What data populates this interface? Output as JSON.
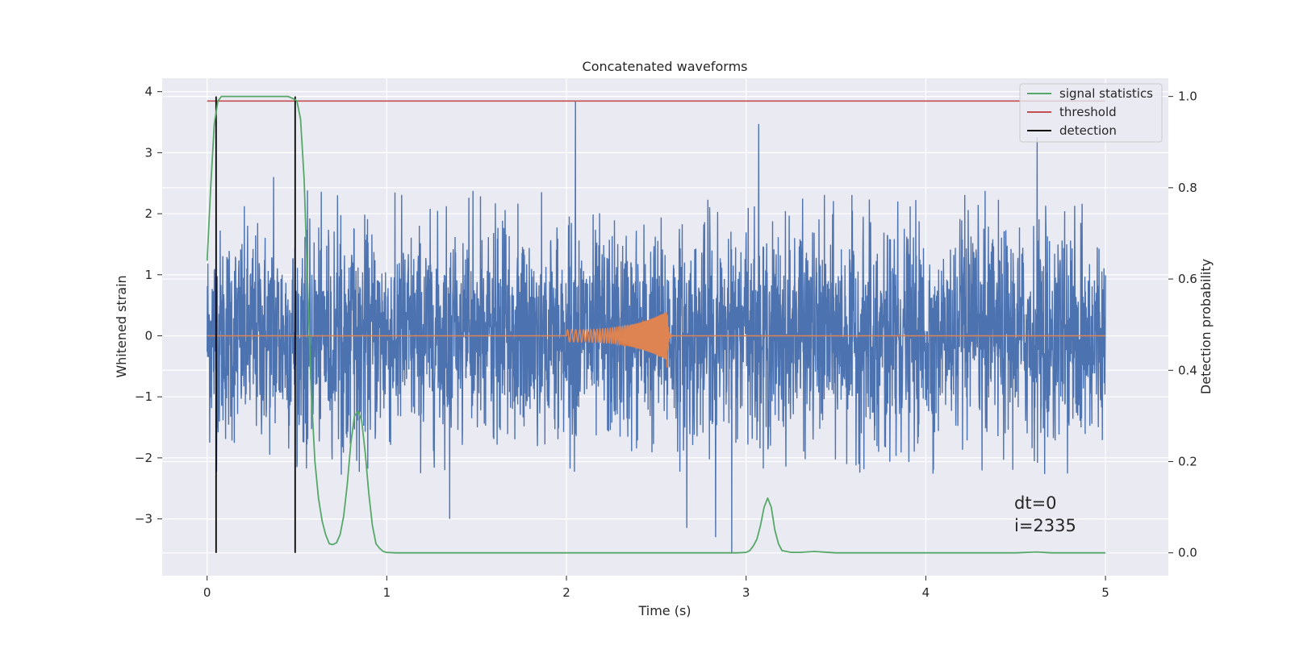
{
  "chart_data": {
    "type": "line",
    "title": "Concatenated waveforms",
    "xlabel": "Time (s)",
    "ylabel": "Whitened strain",
    "y2label": "Detection probability",
    "xlim": [
      -0.25,
      5.35
    ],
    "ylim": [
      -3.93,
      4.22
    ],
    "y2lim": [
      -0.05,
      1.04
    ],
    "xticks": [
      0,
      1,
      2,
      3,
      4,
      5
    ],
    "yticks": [
      -3,
      -2,
      -1,
      0,
      1,
      2,
      3,
      4
    ],
    "y2ticks": [
      0.0,
      0.2,
      0.4,
      0.6,
      0.8,
      1.0
    ],
    "grid": true,
    "legend_position": "top-right",
    "background": "#eaeaf2",
    "series": [
      {
        "name": "signal statistics",
        "axis": "right",
        "color": "#55a868",
        "x": [
          0.0,
          0.02,
          0.04,
          0.06,
          0.08,
          0.1,
          0.15,
          0.2,
          0.3,
          0.4,
          0.45,
          0.48,
          0.5,
          0.52,
          0.54,
          0.56,
          0.58,
          0.6,
          0.62,
          0.64,
          0.66,
          0.68,
          0.7,
          0.72,
          0.74,
          0.76,
          0.78,
          0.8,
          0.82,
          0.84,
          0.86,
          0.88,
          0.9,
          0.92,
          0.94,
          0.96,
          0.98,
          1.0,
          1.05,
          1.1,
          1.5,
          2.0,
          2.5,
          2.8,
          2.9,
          2.95,
          3.0,
          3.02,
          3.04,
          3.06,
          3.08,
          3.1,
          3.12,
          3.14,
          3.16,
          3.18,
          3.2,
          3.25,
          3.3,
          3.38,
          3.5,
          4.0,
          4.5,
          4.62,
          4.7,
          5.0
        ],
        "y": [
          0.64,
          0.8,
          0.94,
          0.99,
          1.0,
          1.0,
          1.0,
          1.0,
          1.0,
          1.0,
          1.0,
          0.995,
          0.99,
          0.95,
          0.82,
          0.58,
          0.35,
          0.2,
          0.12,
          0.07,
          0.04,
          0.02,
          0.018,
          0.022,
          0.04,
          0.08,
          0.15,
          0.24,
          0.3,
          0.31,
          0.29,
          0.22,
          0.13,
          0.06,
          0.02,
          0.01,
          0.003,
          0.001,
          0.0,
          0.0,
          0.0,
          0.0,
          0.0,
          0.0,
          0.0,
          0.0,
          0.001,
          0.005,
          0.015,
          0.03,
          0.06,
          0.1,
          0.12,
          0.1,
          0.05,
          0.02,
          0.005,
          0.001,
          0.001,
          0.003,
          0.0,
          0.0,
          0.0,
          0.002,
          0.0,
          0.0
        ]
      },
      {
        "name": "threshold",
        "axis": "right",
        "color": "#c44e52",
        "x": [
          0.0,
          5.0
        ],
        "y": [
          0.99,
          0.99
        ]
      },
      {
        "name": "detection",
        "axis": "right",
        "color": "#000000",
        "x": [
          0.05,
          0.49
        ],
        "y_range": [
          0.0,
          1.0
        ]
      },
      {
        "name": "",
        "axis": "left",
        "color": "#4c72b0",
        "kind": "noise",
        "x_range": [
          0.0,
          5.0
        ],
        "typical_envelope": [
          -2.3,
          2.4
        ],
        "spikes": [
          {
            "x": 2.05,
            "y": 3.85
          },
          {
            "x": 4.62,
            "y": 3.25
          },
          {
            "x": 3.07,
            "y": 3.47
          },
          {
            "x": 2.92,
            "y": -3.55
          },
          {
            "x": 2.83,
            "y": -3.3
          },
          {
            "x": 2.67,
            "y": -3.15
          },
          {
            "x": 1.35,
            "y": -3.0
          },
          {
            "x": 0.05,
            "y": 2.25
          },
          {
            "x": 0.37,
            "y": 2.6
          }
        ]
      },
      {
        "name": "",
        "axis": "left",
        "color": "#dd8452",
        "kind": "chirp",
        "x_start": 2.0,
        "x_merger": 2.56,
        "x_end": 5.0,
        "amplitude_start": 0.1,
        "amplitude_peak": 0.4
      }
    ],
    "annotations": [
      "dt=0",
      "i=2335"
    ]
  }
}
